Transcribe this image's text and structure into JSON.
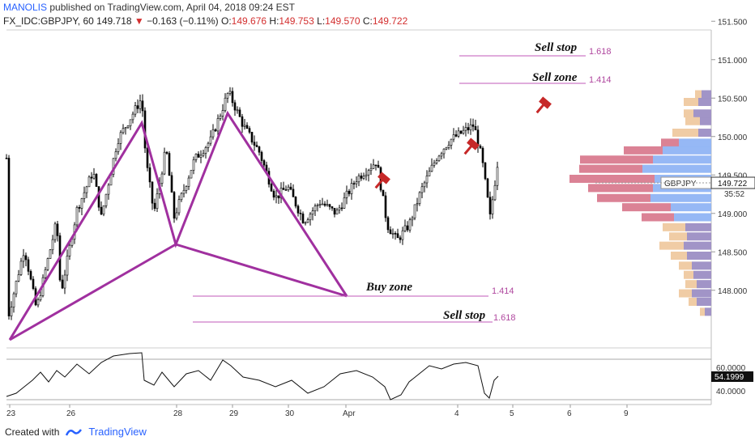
{
  "header": {
    "author": "MANOLIS",
    "published": "published on TradingView.com, April 04, 2018 09:24 EST",
    "symbol": "FX_IDC:GBPJPY, 60",
    "last": "149.718",
    "change": "−0.163 (−0.11%)",
    "o_label": "O:",
    "o": "149.676",
    "h_label": "H:",
    "h": "149.753",
    "l_label": "L:",
    "l": "149.570",
    "c_label": "C:",
    "c": "149.722"
  },
  "annotations": {
    "sell_stop_top": "Sell stop",
    "sell_stop_top_ratio": "1.618",
    "sell_zone": "Sell zone",
    "sell_zone_ratio": "1.414",
    "buy_zone": "Buy zone",
    "buy_zone_ratio": "1.414",
    "sell_stop_bottom": "Sell stop",
    "sell_stop_bottom_ratio": "1.618"
  },
  "price_axis": {
    "ticks": [
      "151.500",
      "151.000",
      "150.500",
      "150.000",
      "149.500",
      "149.000",
      "148.500",
      "148.000"
    ],
    "last_symbol": "GBPJPY",
    "last_price": "149.722",
    "countdown": "35:52"
  },
  "rsi_axis": {
    "ticks": [
      "60.0000",
      "40.0000"
    ],
    "value": "54.1999"
  },
  "time_axis": [
    "23",
    "26",
    "28",
    "29",
    "30",
    "Apr",
    "4",
    "5",
    "6",
    "9"
  ],
  "footer": {
    "created": "Created with",
    "brand": "TradingView"
  },
  "colors": {
    "pattern": "#a0309f",
    "level_line": "#c05ab8",
    "hammer": "#c62828",
    "vp_up": "#90b4f4",
    "vp_down": "#d97b8f",
    "vp_up_va": "#9c8ec4",
    "vp_down_va": "#efc9a0"
  },
  "chart_data": {
    "type": "candlestick",
    "symbol": "GBPJPY",
    "timeframe": "60",
    "y_axis": {
      "range": [
        147.55,
        151.65
      ],
      "ticks": [
        148.0,
        148.5,
        149.0,
        149.5,
        150.0,
        150.5,
        151.0,
        151.5
      ]
    },
    "x_axis": {
      "labels": [
        "23",
        "26",
        "28",
        "29",
        "30",
        "Apr",
        "4",
        "5",
        "6",
        "9"
      ]
    },
    "close_path": [
      147.65,
      148.55,
      147.7,
      148.95,
      147.95,
      149.55,
      148.9,
      149.9,
      150.5,
      149.3,
      148.95,
      149.6,
      150.58,
      149.8,
      149.6,
      149.1,
      148.9,
      149.15,
      149.1,
      149.65,
      148.7,
      148.65,
      149.35,
      149.75,
      150.15,
      150.05,
      148.95,
      149.72
    ],
    "pattern_points": [
      [
        147.65
      ],
      [
        150.5
      ],
      [
        148.9
      ],
      [
        150.58
      ],
      [
        148.22
      ]
    ],
    "levels": [
      {
        "label": "Sell stop",
        "ratio": 1.618,
        "price": 151.38
      },
      {
        "label": "Sell zone",
        "ratio": 1.414,
        "price": 151.03
      },
      {
        "label": "Buy zone",
        "ratio": 1.414,
        "price": 148.22
      },
      {
        "label": "Sell stop",
        "ratio": 1.618,
        "price": 147.88
      }
    ],
    "last_price": 149.722,
    "rsi": {
      "ticks": [
        60,
        40
      ],
      "last": 54.1999
    }
  }
}
